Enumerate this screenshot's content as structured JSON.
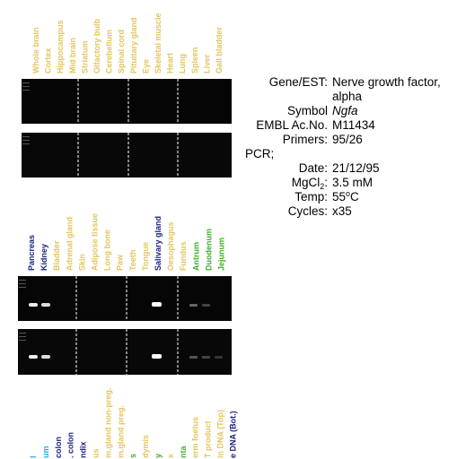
{
  "top_labels": [
    {
      "text": "Whole brain",
      "color": "#e3c55c"
    },
    {
      "text": "Cortex",
      "color": "#e3c55c"
    },
    {
      "text": "Hippocampus",
      "color": "#e3c55c"
    },
    {
      "text": "Mid brain",
      "color": "#e3c55c"
    },
    {
      "text": "Striatum",
      "color": "#e3c55c"
    },
    {
      "text": "Olfactory bulb",
      "color": "#e3c55c"
    },
    {
      "text": "Cerebellum",
      "color": "#e3c55c"
    },
    {
      "text": "Spinal cord",
      "color": "#e3c55c"
    },
    {
      "text": "Pituitary gland",
      "color": "#e3c55c"
    },
    {
      "text": "Eye",
      "color": "#e3c55c"
    },
    {
      "text": "Skeletal muscle",
      "color": "#e3c55c"
    },
    {
      "text": "Heart",
      "color": "#e3c55c"
    },
    {
      "text": "Lung",
      "color": "#e3c55c"
    },
    {
      "text": "Spleen",
      "color": "#e3c55c"
    },
    {
      "text": "Liver",
      "color": "#e3c55c"
    },
    {
      "text": "Gall bladder",
      "color": "#e3c55c"
    }
  ],
  "middle_labels": [
    {
      "text": "Pancreas",
      "color": "#1a237e"
    },
    {
      "text": "Kidney",
      "color": "#1a237e"
    },
    {
      "text": "Bladder",
      "color": "#e3c55c"
    },
    {
      "text": "Adrenal gland",
      "color": "#e3c55c"
    },
    {
      "text": "Skin",
      "color": "#e3c55c"
    },
    {
      "text": "Adipose tissue",
      "color": "#e3c55c"
    },
    {
      "text": "Long bone",
      "color": "#e3c55c"
    },
    {
      "text": "Paw",
      "color": "#e3c55c"
    },
    {
      "text": "Teeth",
      "color": "#e3c55c"
    },
    {
      "text": "Tongue",
      "color": "#e3c55c"
    },
    {
      "text": "Salivary gland",
      "color": "#1a237e"
    },
    {
      "text": "Oesophagus",
      "color": "#e3c55c"
    },
    {
      "text": "Fundus",
      "color": "#e3c55c"
    },
    {
      "text": "Antrum",
      "color": "#3fae2a"
    },
    {
      "text": "Duodenum",
      "color": "#3fae2a"
    },
    {
      "text": "Jejunum",
      "color": "#3fae2a"
    }
  ],
  "bottom_labels": [
    {
      "text": "l",
      "color": "#2aa8e0"
    },
    {
      "text": "um",
      "color": "#2aa8e0"
    },
    {
      "text": "colon",
      "color": "#1a237e"
    },
    {
      "text": ". colon",
      "color": "#1a237e"
    },
    {
      "text": "ndix",
      "color": "#1a237e"
    },
    {
      "text": "us",
      "color": "#e3c55c"
    },
    {
      "text": "m.gland non-preg.",
      "color": "#e3c55c"
    },
    {
      "text": "m.gland preg.",
      "color": "#e3c55c"
    },
    {
      "text": "s",
      "color": "#3fae2a"
    },
    {
      "text": "dymis",
      "color": "#e3c55c"
    },
    {
      "text": "y",
      "color": "#3fae2a"
    },
    {
      "text": "x",
      "color": "#e3c55c"
    },
    {
      "text": "nta",
      "color": "#3fae2a"
    },
    {
      "text": "erm foetus",
      "color": "#e3c55c"
    },
    {
      "text": "T product",
      "color": "#e3c55c"
    },
    {
      "text": "in DNA (Top)",
      "color": "#e3c55c"
    },
    {
      "text": "e DNA (Bot.)",
      "color": "#1a237e"
    }
  ],
  "info": {
    "gene_label": "Gene/EST:",
    "gene_value": [
      "Nerve growth factor,",
      "alpha"
    ],
    "symbol_label": "Symbol",
    "symbol_value": "Ngfa",
    "embl_label": "EMBL Ac.No.",
    "embl_value": "M11434",
    "primers_label": "Primers:",
    "primers_value": "95/26",
    "pcr_label": "PCR;",
    "date_label": "Date:",
    "date_value": "21/12/95",
    "mgcl_label": [
      "MgCl",
      "2",
      ":"
    ],
    "mgcl_value": "3.5 mM",
    "temp_label": "Temp:",
    "temp_value": [
      "55",
      "o",
      "C"
    ],
    "cycles_label": "Cycles:",
    "cycles_value": "x35"
  }
}
